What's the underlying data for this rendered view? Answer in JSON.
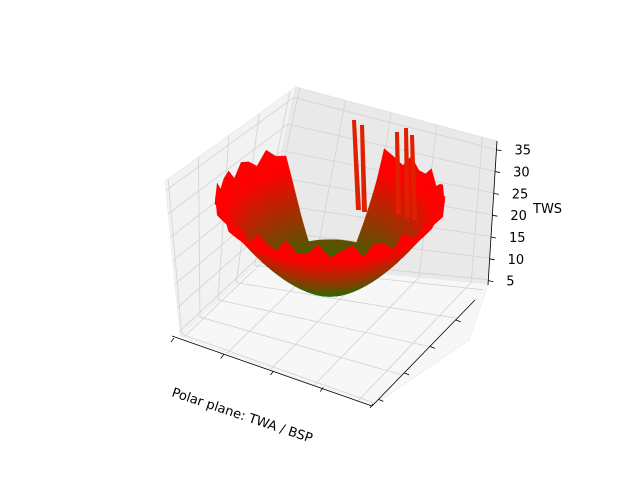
{
  "chart_data": {
    "type": "surface3d",
    "title": "",
    "xlabel": "Polar plane: TWA / BSP",
    "ylabel": "",
    "zlabel": "TWS",
    "zlim": [
      4,
      37
    ],
    "z_ticks": [
      5,
      10,
      15,
      20,
      25,
      30,
      35
    ],
    "x_tick_labels": [
      "",
      "",
      "",
      "",
      ""
    ],
    "y_tick_labels": [
      "",
      "",
      "",
      ""
    ],
    "grid": true,
    "colormap": {
      "low": "#008000",
      "high": "#ff0000"
    },
    "series": [
      {
        "description_in_data_units": "polar surface, TWS rises from about 5 at the trough to about 35 at the rim",
        "tws_min": 5,
        "tws_max": 35
      }
    ]
  }
}
